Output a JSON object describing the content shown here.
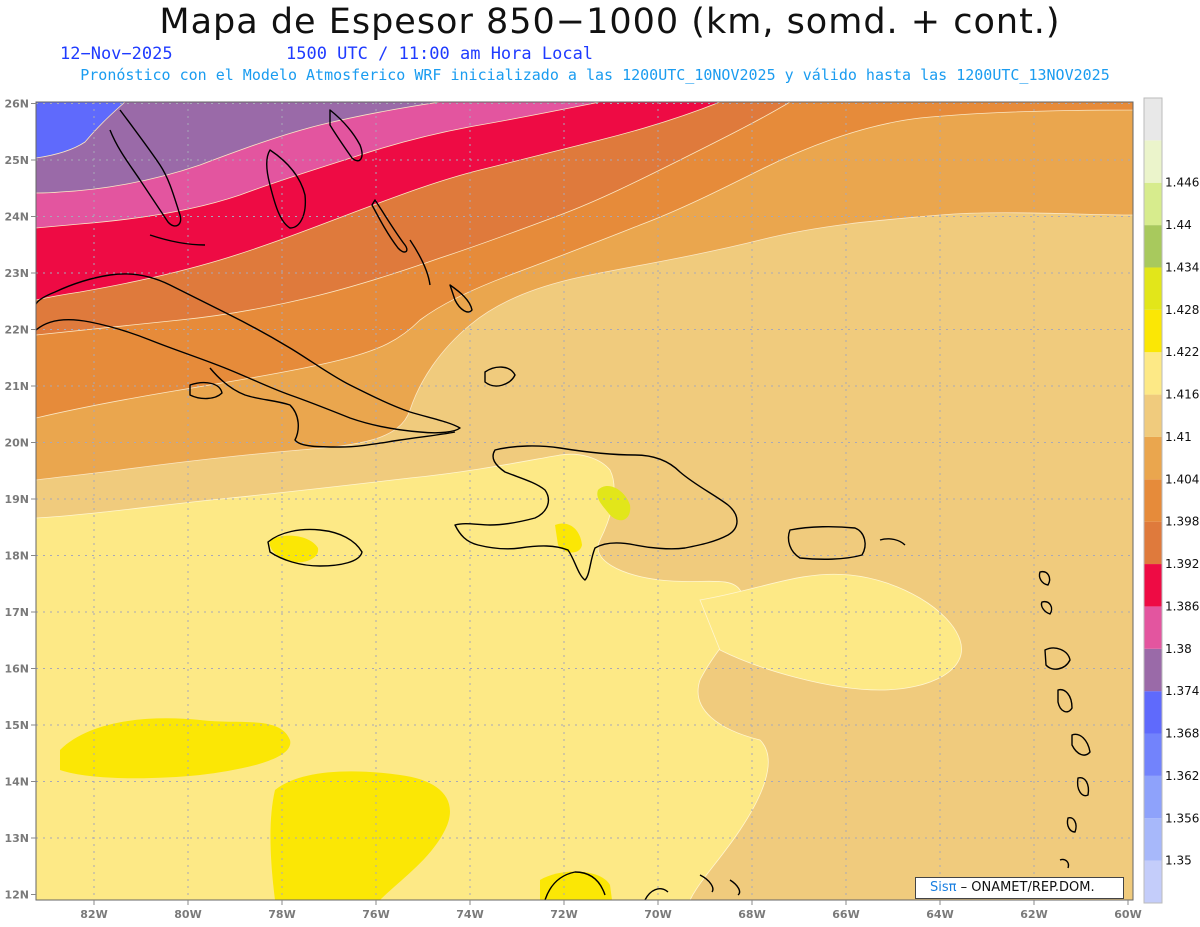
{
  "header": {
    "title": "Mapa de Espesor 850−1000 (km, somd. + cont.)",
    "date": "12−Nov−2025",
    "time": "1500 UTC / 11:00 am Hora Local",
    "subtitle": "Pronóstico con el Modelo Atmosferico WRF inicializado a las 1200UTC_10NOV2025 y válido hasta las  1200UTC_13NOV2025"
  },
  "axes": {
    "lat_labels": [
      "26N",
      "25N",
      "24N",
      "23N",
      "22N",
      "21N",
      "20N",
      "19N",
      "18N",
      "17N",
      "16N",
      "15N",
      "14N",
      "13N",
      "12N"
    ],
    "lon_labels": [
      "82W",
      "80W",
      "78W",
      "76W",
      "74W",
      "72W",
      "70W",
      "68W",
      "66W",
      "64W",
      "62W",
      "60W"
    ]
  },
  "colorbar": {
    "levels": [
      "1.35",
      "1.356",
      "1.362",
      "1.368",
      "1.374",
      "1.38",
      "1.386",
      "1.392",
      "1.398",
      "1.404",
      "1.41",
      "1.416",
      "1.422",
      "1.428",
      "1.434",
      "1.44",
      "1.446"
    ],
    "colors": [
      "#c4cdfa",
      "#a7b8fa",
      "#8ea2fb",
      "#7283fc",
      "#5f6afc",
      "#9a6aa8",
      "#e3559f",
      "#ee0b44",
      "#df7a3c",
      "#e68b3a",
      "#eaa64e",
      "#f0cb7d",
      "#fde986",
      "#fbe705",
      "#e2e61a",
      "#a8c95d",
      "#d7ec8d",
      "#ebf4cb",
      "#e8e8e8"
    ]
  },
  "credit": {
    "brand": "Sisπ",
    "org": " – ONAMET/REP.DOM."
  }
}
